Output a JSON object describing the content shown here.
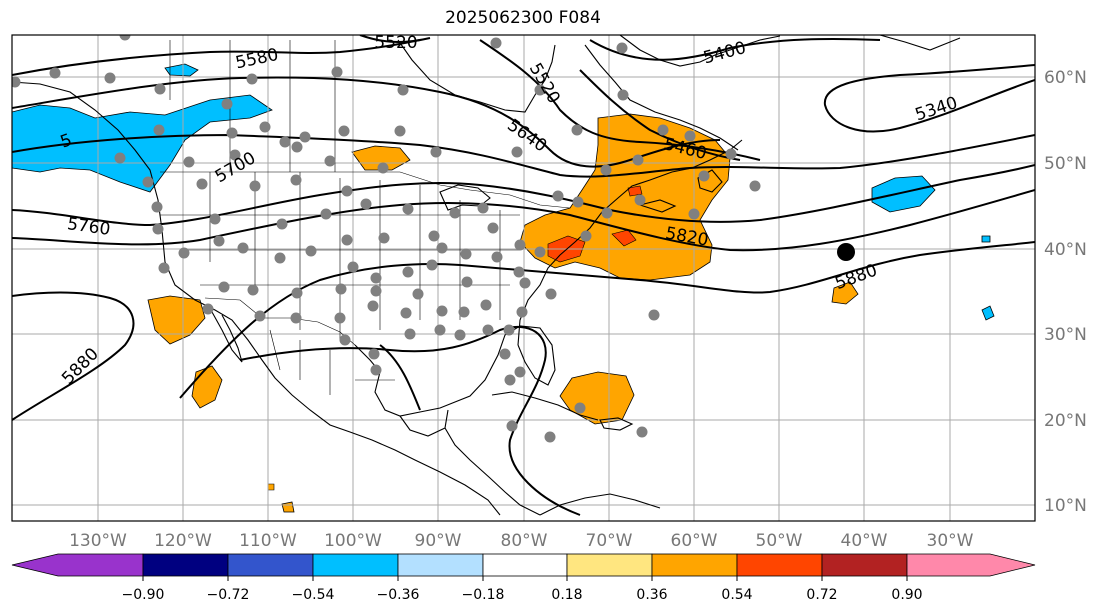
{
  "title": "2025062300 F084",
  "latitude_labels": [
    "60°N",
    "50°N",
    "40°N",
    "30°N",
    "20°N",
    "10°N"
  ],
  "longitude_labels": [
    "130°W",
    "120°W",
    "110°W",
    "100°W",
    "90°W",
    "80°W",
    "70°W",
    "60°W",
    "50°W",
    "40°W",
    "30°W"
  ],
  "contour_labels": [
    "5580",
    "5520",
    "5400",
    "5520",
    "5640",
    "5460",
    "5340",
    "5700",
    "5760",
    "5820",
    "5880",
    "5880",
    "5"
  ],
  "colorbar": {
    "ticks": [
      "−0.90",
      "−0.72",
      "−0.54",
      "−0.36",
      "−0.18",
      "0.18",
      "0.36",
      "0.54",
      "0.72",
      "0.90"
    ],
    "colors": [
      "#9933cc",
      "#000080",
      "#3355cc",
      "#00bfff",
      "#b3e0ff",
      "#ffffff",
      "#ffe680",
      "#ffa500",
      "#ff4500",
      "#b22222",
      "#ff88aa"
    ]
  },
  "fill_colors": {
    "negative": "#00bfff",
    "negative_light": "#b3e0ff",
    "positive": "#ffa500",
    "positive_strong": "#ff4500"
  }
}
